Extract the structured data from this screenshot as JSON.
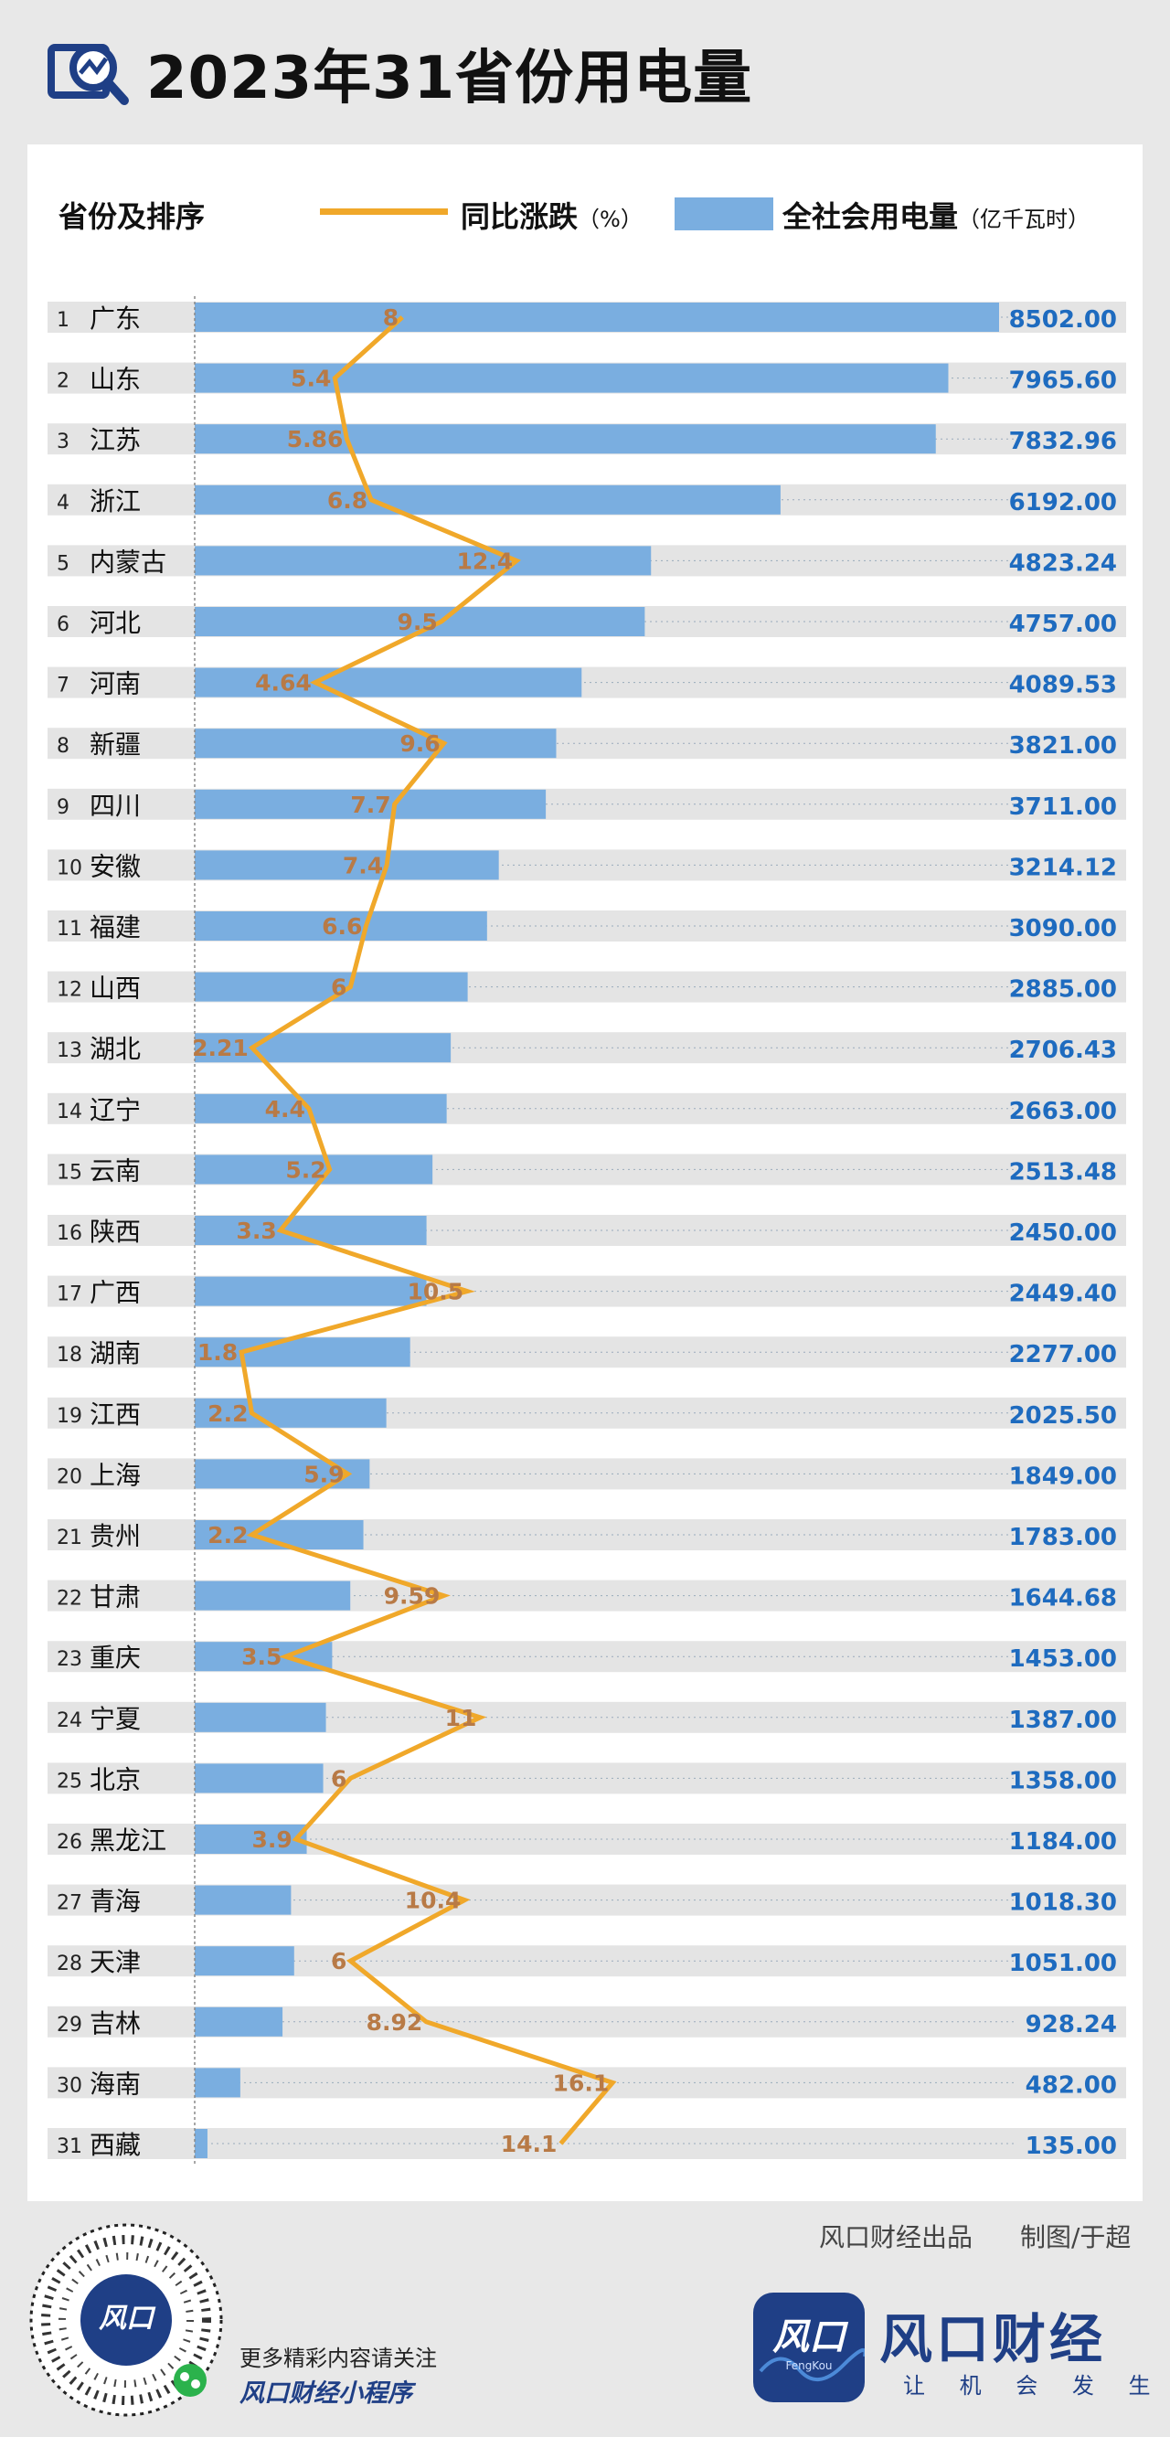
{
  "title": "2023年31省份用电量",
  "legend": {
    "rank_label": "省份及排序",
    "line_label": "同比涨跌",
    "line_unit": "（%）",
    "bar_label": "全社会用电量",
    "bar_unit": "（亿千瓦时）"
  },
  "colors": {
    "bar": "#7aaee0",
    "line": "#f0a82a",
    "growth_text": "#b87a46",
    "value_text": "#1e6bbf",
    "row_bg": "#e4e4e4",
    "brand": "#1f3f86"
  },
  "chart_data": {
    "type": "bar",
    "categories": [
      "广东",
      "山东",
      "江苏",
      "浙江",
      "内蒙古",
      "河北",
      "河南",
      "新疆",
      "四川",
      "安徽",
      "福建",
      "山西",
      "湖北",
      "辽宁",
      "云南",
      "陕西",
      "广西",
      "湖南",
      "江西",
      "上海",
      "贵州",
      "甘肃",
      "重庆",
      "宁夏",
      "北京",
      "黑龙江",
      "青海",
      "天津",
      "吉林",
      "海南",
      "西藏"
    ],
    "series": [
      {
        "name": "全社会用电量",
        "unit": "亿千瓦时",
        "type": "bar",
        "values": [
          8502.0,
          7965.6,
          7832.96,
          6192.0,
          4823.24,
          4757.0,
          4089.53,
          3821.0,
          3711.0,
          3214.12,
          3090.0,
          2885.0,
          2706.43,
          2663.0,
          2513.48,
          2450.0,
          2449.4,
          2277.0,
          2025.5,
          1849.0,
          1783.0,
          1644.68,
          1453.0,
          1387.0,
          1358.0,
          1184.0,
          1018.3,
          1051.0,
          928.24,
          482.0,
          135.0
        ],
        "labels": [
          "8502.00",
          "7965.60",
          "7832.96",
          "6192.00",
          "4823.24",
          "4757.00",
          "4089.53",
          "3821.00",
          "3711.00",
          "3214.12",
          "3090.00",
          "2885.00",
          "2706.43",
          "2663.00",
          "2513.48",
          "2450.00",
          "2449.40",
          "2277.00",
          "2025.50",
          "1849.00",
          "1783.00",
          "1644.68",
          "1453.00",
          "1387.00",
          "1358.00",
          "1184.00",
          "1018.30",
          "1051.00",
          "928.24",
          "482.00",
          "135.00"
        ]
      },
      {
        "name": "同比涨跌",
        "unit": "%",
        "type": "line",
        "values": [
          8,
          5.4,
          5.86,
          6.8,
          12.4,
          9.5,
          4.64,
          9.6,
          7.7,
          7.4,
          6.6,
          6,
          2.21,
          4.4,
          5.2,
          3.3,
          10.5,
          1.8,
          2.2,
          5.9,
          2.2,
          9.59,
          3.5,
          11,
          6,
          3.9,
          10.4,
          6,
          8.92,
          16.1,
          14.1
        ],
        "labels": [
          "8",
          "5.4",
          "5.86",
          "6.8",
          "12.4",
          "9.5",
          "4.64",
          "9.6",
          "7.7",
          "7.4",
          "6.6",
          "6",
          "2.21",
          "4.4",
          "5.2",
          "3.3",
          "10.5",
          "1.8",
          "2.2",
          "5.9",
          "2.2",
          "9.59",
          "3.5",
          "11",
          "6",
          "3.9",
          "10.4",
          "6",
          "8.92",
          "16.1",
          "14.1"
        ]
      }
    ],
    "ranks": [
      "1",
      "2",
      "3",
      "4",
      "5",
      "6",
      "7",
      "8",
      "9",
      "10",
      "11",
      "12",
      "13",
      "14",
      "15",
      "16",
      "17",
      "18",
      "19",
      "20",
      "21",
      "22",
      "23",
      "24",
      "25",
      "26",
      "27",
      "28",
      "29",
      "30",
      "31"
    ],
    "bar_max": 8502,
    "line_range": [
      0,
      20
    ],
    "grid": false
  },
  "footer": {
    "credit_source": "风口财经出品",
    "credit_author": "制图/于超",
    "promo_line1": "更多精彩内容请关注",
    "promo_line2": "风口财经小程序",
    "brand_name": "风口财经",
    "brand_slogan": "让 机 会 发 生",
    "brand_logo_text": "风口",
    "brand_logo_sub": "FengKou"
  }
}
